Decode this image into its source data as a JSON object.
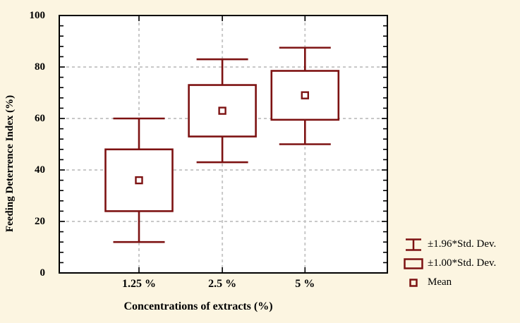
{
  "chart_data": {
    "type": "boxplot",
    "title": "",
    "xlabel": "Concentrations of extracts (%)",
    "ylabel": "Feeding Deterrence Index (%)",
    "categories": [
      "1.25 %",
      "2.5 %",
      "5 %"
    ],
    "category_positions": [
      0.243,
      0.497,
      0.749
    ],
    "series": [
      {
        "category": "1.25 %",
        "mean": 36,
        "sd1_low": 24,
        "sd1_high": 48,
        "sd196_low": 12,
        "sd196_high": 60
      },
      {
        "category": "2.5 %",
        "mean": 63,
        "sd1_low": 53,
        "sd1_high": 73,
        "sd196_low": 43,
        "sd196_high": 83
      },
      {
        "category": "5 %",
        "mean": 69,
        "sd1_low": 59.5,
        "sd1_high": 78.5,
        "sd196_low": 50,
        "sd196_high": 87.5
      }
    ],
    "ylim": [
      0,
      100
    ],
    "y_major_ticks": [
      0,
      20,
      40,
      60,
      80,
      100
    ],
    "y_minor_step": 4,
    "grid": "both-dashed",
    "legend_position": "bottom-right",
    "legend": [
      {
        "symbol": "whisker-range",
        "label": "±1.96*Std. Dev."
      },
      {
        "symbol": "box-range",
        "label": "±1.00*Std. Dev."
      },
      {
        "symbol": "mean-square",
        "label": "Mean"
      }
    ],
    "colors": {
      "box": "#7D1212",
      "frame": "#000000",
      "grid": "#C8C8C8",
      "background": "#FCF5E1",
      "plot_background": "#FFFFFF",
      "text": "#000000"
    }
  }
}
